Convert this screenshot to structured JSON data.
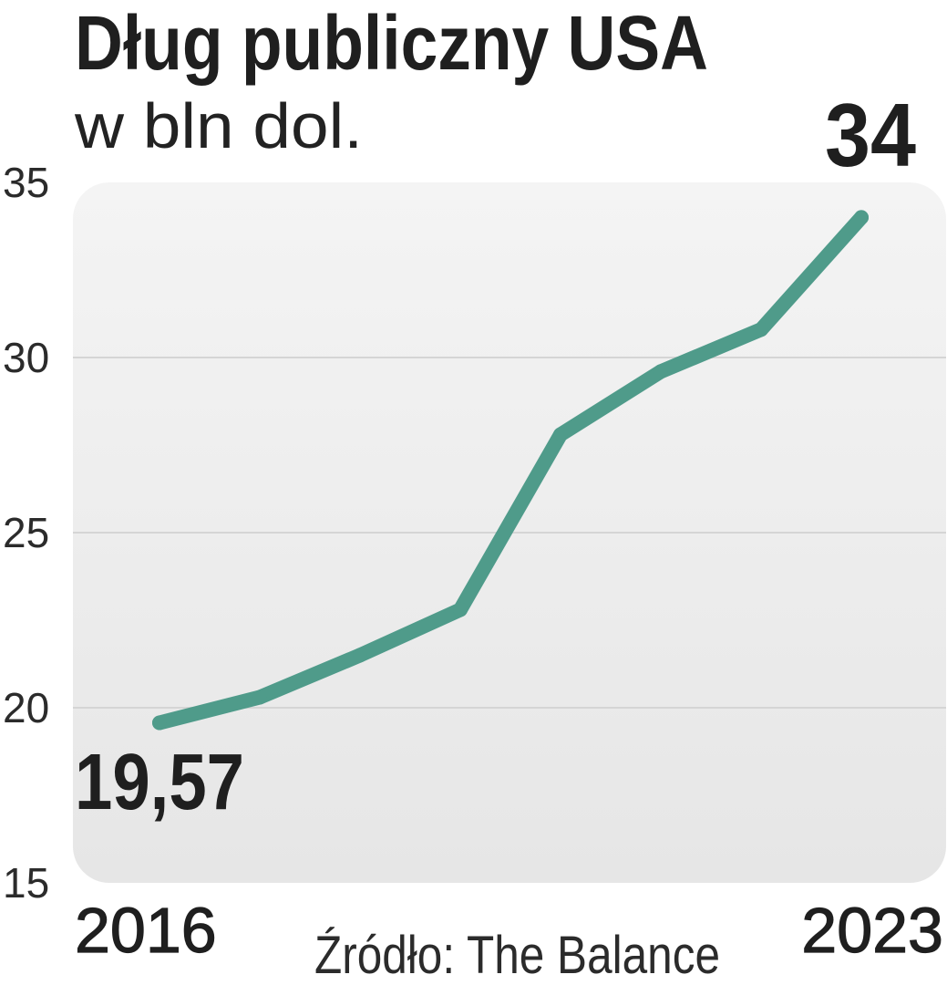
{
  "colors": {
    "line": "#4f9b8a",
    "plot_bg_top": "#f4f4f4",
    "plot_bg_bottom": "#e6e6e6",
    "grid": "#d5d5d5",
    "text": "#1f1f1f"
  },
  "chart_data": {
    "type": "line",
    "title": "Dług publiczny USA",
    "subtitle": "w bln dol.",
    "xlabel": "",
    "ylabel": "",
    "x": [
      2016,
      2017,
      2018,
      2019,
      2020,
      2021,
      2022,
      2023
    ],
    "y": [
      19.57,
      20.3,
      21.5,
      22.8,
      27.8,
      29.6,
      30.8,
      34
    ],
    "x_tick_labels": [
      "2016",
      "2023"
    ],
    "ylim": [
      15,
      35
    ],
    "y_ticks": [
      15,
      20,
      25,
      30,
      35
    ],
    "y_tick_labels": [
      "15",
      "20",
      "25",
      "30",
      "35"
    ],
    "grid": true,
    "annotations": [
      {
        "x": 2016,
        "label": "19,57"
      },
      {
        "x": 2023,
        "label": "34"
      }
    ],
    "source": "Źródło: The Balance"
  }
}
